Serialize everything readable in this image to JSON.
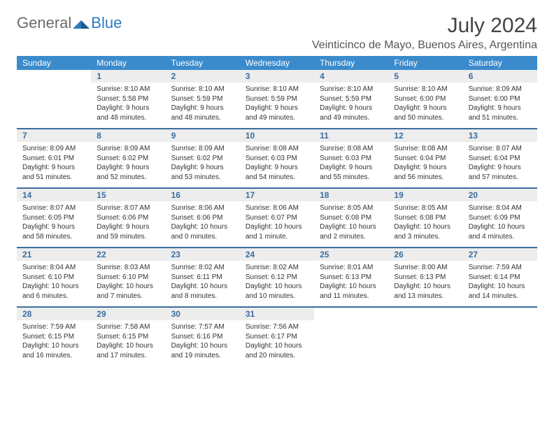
{
  "logo": {
    "general": "General",
    "blue": "Blue"
  },
  "title": "July 2024",
  "location": "Veinticinco de Mayo, Buenos Aires, Argentina",
  "colors": {
    "header_bg": "#3b8bcc",
    "border": "#3b6e9e",
    "daynum_bg": "#ededed",
    "daynum_fg": "#3b6e9e",
    "text": "#333333",
    "logo_gray": "#6b6b6b",
    "logo_blue": "#2d7bc0"
  },
  "weekdays": [
    "Sunday",
    "Monday",
    "Tuesday",
    "Wednesday",
    "Thursday",
    "Friday",
    "Saturday"
  ],
  "weeks": [
    [
      {
        "blank": true
      },
      {
        "day": "1",
        "sunrise": "Sunrise: 8:10 AM",
        "sunset": "Sunset: 5:58 PM",
        "daylight1": "Daylight: 9 hours",
        "daylight2": "and 48 minutes."
      },
      {
        "day": "2",
        "sunrise": "Sunrise: 8:10 AM",
        "sunset": "Sunset: 5:59 PM",
        "daylight1": "Daylight: 9 hours",
        "daylight2": "and 48 minutes."
      },
      {
        "day": "3",
        "sunrise": "Sunrise: 8:10 AM",
        "sunset": "Sunset: 5:59 PM",
        "daylight1": "Daylight: 9 hours",
        "daylight2": "and 49 minutes."
      },
      {
        "day": "4",
        "sunrise": "Sunrise: 8:10 AM",
        "sunset": "Sunset: 5:59 PM",
        "daylight1": "Daylight: 9 hours",
        "daylight2": "and 49 minutes."
      },
      {
        "day": "5",
        "sunrise": "Sunrise: 8:10 AM",
        "sunset": "Sunset: 6:00 PM",
        "daylight1": "Daylight: 9 hours",
        "daylight2": "and 50 minutes."
      },
      {
        "day": "6",
        "sunrise": "Sunrise: 8:09 AM",
        "sunset": "Sunset: 6:00 PM",
        "daylight1": "Daylight: 9 hours",
        "daylight2": "and 51 minutes."
      }
    ],
    [
      {
        "day": "7",
        "sunrise": "Sunrise: 8:09 AM",
        "sunset": "Sunset: 6:01 PM",
        "daylight1": "Daylight: 9 hours",
        "daylight2": "and 51 minutes."
      },
      {
        "day": "8",
        "sunrise": "Sunrise: 8:09 AM",
        "sunset": "Sunset: 6:02 PM",
        "daylight1": "Daylight: 9 hours",
        "daylight2": "and 52 minutes."
      },
      {
        "day": "9",
        "sunrise": "Sunrise: 8:09 AM",
        "sunset": "Sunset: 6:02 PM",
        "daylight1": "Daylight: 9 hours",
        "daylight2": "and 53 minutes."
      },
      {
        "day": "10",
        "sunrise": "Sunrise: 8:08 AM",
        "sunset": "Sunset: 6:03 PM",
        "daylight1": "Daylight: 9 hours",
        "daylight2": "and 54 minutes."
      },
      {
        "day": "11",
        "sunrise": "Sunrise: 8:08 AM",
        "sunset": "Sunset: 6:03 PM",
        "daylight1": "Daylight: 9 hours",
        "daylight2": "and 55 minutes."
      },
      {
        "day": "12",
        "sunrise": "Sunrise: 8:08 AM",
        "sunset": "Sunset: 6:04 PM",
        "daylight1": "Daylight: 9 hours",
        "daylight2": "and 56 minutes."
      },
      {
        "day": "13",
        "sunrise": "Sunrise: 8:07 AM",
        "sunset": "Sunset: 6:04 PM",
        "daylight1": "Daylight: 9 hours",
        "daylight2": "and 57 minutes."
      }
    ],
    [
      {
        "day": "14",
        "sunrise": "Sunrise: 8:07 AM",
        "sunset": "Sunset: 6:05 PM",
        "daylight1": "Daylight: 9 hours",
        "daylight2": "and 58 minutes."
      },
      {
        "day": "15",
        "sunrise": "Sunrise: 8:07 AM",
        "sunset": "Sunset: 6:06 PM",
        "daylight1": "Daylight: 9 hours",
        "daylight2": "and 59 minutes."
      },
      {
        "day": "16",
        "sunrise": "Sunrise: 8:06 AM",
        "sunset": "Sunset: 6:06 PM",
        "daylight1": "Daylight: 10 hours",
        "daylight2": "and 0 minutes."
      },
      {
        "day": "17",
        "sunrise": "Sunrise: 8:06 AM",
        "sunset": "Sunset: 6:07 PM",
        "daylight1": "Daylight: 10 hours",
        "daylight2": "and 1 minute."
      },
      {
        "day": "18",
        "sunrise": "Sunrise: 8:05 AM",
        "sunset": "Sunset: 6:08 PM",
        "daylight1": "Daylight: 10 hours",
        "daylight2": "and 2 minutes."
      },
      {
        "day": "19",
        "sunrise": "Sunrise: 8:05 AM",
        "sunset": "Sunset: 6:08 PM",
        "daylight1": "Daylight: 10 hours",
        "daylight2": "and 3 minutes."
      },
      {
        "day": "20",
        "sunrise": "Sunrise: 8:04 AM",
        "sunset": "Sunset: 6:09 PM",
        "daylight1": "Daylight: 10 hours",
        "daylight2": "and 4 minutes."
      }
    ],
    [
      {
        "day": "21",
        "sunrise": "Sunrise: 8:04 AM",
        "sunset": "Sunset: 6:10 PM",
        "daylight1": "Daylight: 10 hours",
        "daylight2": "and 6 minutes."
      },
      {
        "day": "22",
        "sunrise": "Sunrise: 8:03 AM",
        "sunset": "Sunset: 6:10 PM",
        "daylight1": "Daylight: 10 hours",
        "daylight2": "and 7 minutes."
      },
      {
        "day": "23",
        "sunrise": "Sunrise: 8:02 AM",
        "sunset": "Sunset: 6:11 PM",
        "daylight1": "Daylight: 10 hours",
        "daylight2": "and 8 minutes."
      },
      {
        "day": "24",
        "sunrise": "Sunrise: 8:02 AM",
        "sunset": "Sunset: 6:12 PM",
        "daylight1": "Daylight: 10 hours",
        "daylight2": "and 10 minutes."
      },
      {
        "day": "25",
        "sunrise": "Sunrise: 8:01 AM",
        "sunset": "Sunset: 6:13 PM",
        "daylight1": "Daylight: 10 hours",
        "daylight2": "and 11 minutes."
      },
      {
        "day": "26",
        "sunrise": "Sunrise: 8:00 AM",
        "sunset": "Sunset: 6:13 PM",
        "daylight1": "Daylight: 10 hours",
        "daylight2": "and 13 minutes."
      },
      {
        "day": "27",
        "sunrise": "Sunrise: 7:59 AM",
        "sunset": "Sunset: 6:14 PM",
        "daylight1": "Daylight: 10 hours",
        "daylight2": "and 14 minutes."
      }
    ],
    [
      {
        "day": "28",
        "sunrise": "Sunrise: 7:59 AM",
        "sunset": "Sunset: 6:15 PM",
        "daylight1": "Daylight: 10 hours",
        "daylight2": "and 16 minutes."
      },
      {
        "day": "29",
        "sunrise": "Sunrise: 7:58 AM",
        "sunset": "Sunset: 6:15 PM",
        "daylight1": "Daylight: 10 hours",
        "daylight2": "and 17 minutes."
      },
      {
        "day": "30",
        "sunrise": "Sunrise: 7:57 AM",
        "sunset": "Sunset: 6:16 PM",
        "daylight1": "Daylight: 10 hours",
        "daylight2": "and 19 minutes."
      },
      {
        "day": "31",
        "sunrise": "Sunrise: 7:56 AM",
        "sunset": "Sunset: 6:17 PM",
        "daylight1": "Daylight: 10 hours",
        "daylight2": "and 20 minutes."
      },
      {
        "blank": true
      },
      {
        "blank": true
      },
      {
        "blank": true
      }
    ]
  ]
}
